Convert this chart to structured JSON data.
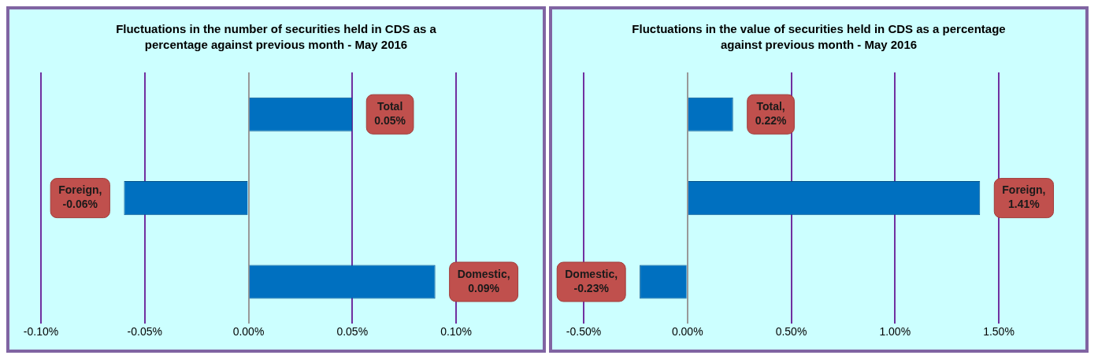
{
  "chart_data": [
    {
      "type": "bar",
      "orientation": "horizontal",
      "title": "Fluctuations in the number of securities held in CDS as a percentage against previous month - May 2016",
      "categories": [
        null,
        null,
        null
      ],
      "values": [
        0.05,
        -0.06,
        0.09
      ],
      "value_labels": [
        "Total\n0.05%",
        "Foreign,\n-0.06%",
        "Domestic,\n0.09%"
      ],
      "color": "#0070c0",
      "xlim": [
        -0.1,
        0.1
      ],
      "xticks": [
        {
          "value": -0.1,
          "label": "-0.10%"
        },
        {
          "value": -0.05,
          "label": "-0.05%"
        },
        {
          "value": 0,
          "label": "0.00%"
        },
        {
          "value": 0.05,
          "label": "0.05%"
        },
        {
          "value": 0.1,
          "label": "0.10%"
        }
      ],
      "grid": "x",
      "legend": false
    },
    {
      "type": "bar",
      "orientation": "horizontal",
      "title": "Fluctuations in the value of securities held in CDS as a percentage against previous month - May 2016",
      "categories": [
        null,
        null,
        null
      ],
      "values": [
        0.22,
        1.41,
        -0.23
      ],
      "value_labels": [
        "Total,\n0.22%",
        "Foreign,\n1.41%",
        "Domestic,\n-0.23%"
      ],
      "color": "#0070c0",
      "xlim": [
        -0.5,
        1.5
      ],
      "xticks": [
        {
          "value": -0.5,
          "label": "-0.50%"
        },
        {
          "value": 0,
          "label": "0.00%"
        },
        {
          "value": 0.5,
          "label": "0.50%"
        },
        {
          "value": 1,
          "label": "1.00%"
        },
        {
          "value": 1.5,
          "label": "1.50%"
        }
      ],
      "grid": "x",
      "legend": false
    }
  ]
}
